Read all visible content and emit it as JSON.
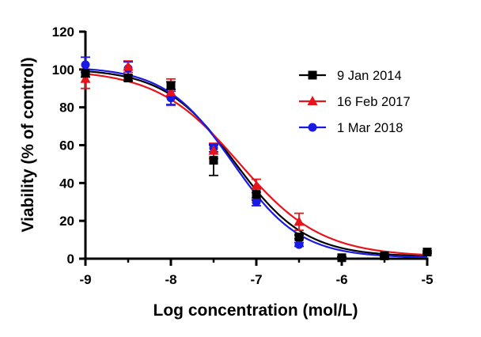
{
  "chart_data": {
    "type": "scatter",
    "xlabel": "Log concentration (mol/L)",
    "ylabel": "Viability (% of control)",
    "xlim": [
      -9,
      -5
    ],
    "ylim": [
      0,
      120
    ],
    "x_ticks": [
      "-9",
      "-8",
      "-7",
      "-6",
      "-5"
    ],
    "y_ticks": [
      "0",
      "20",
      "40",
      "60",
      "80",
      "100",
      "120"
    ],
    "legend_position": "right",
    "series": [
      {
        "name": "9 Jan 2014",
        "color": "#000000",
        "marker": "square",
        "points": [
          {
            "x": -9.0,
            "y": 98,
            "err": 2
          },
          {
            "x": -8.5,
            "y": 95.5,
            "err": 1.5
          },
          {
            "x": -8.0,
            "y": 91.5,
            "err": 2
          },
          {
            "x": -7.5,
            "y": 52,
            "err": 8
          },
          {
            "x": -7.0,
            "y": 34,
            "err": 3
          },
          {
            "x": -6.5,
            "y": 11.5,
            "err": 1
          },
          {
            "x": -6.0,
            "y": 0.5,
            "err": 0.5
          },
          {
            "x": -5.5,
            "y": 1.5,
            "err": 0.5
          },
          {
            "x": -5.0,
            "y": 3.5,
            "err": 0.5
          }
        ],
        "fit": {
          "top": 100.5,
          "bottom": 1,
          "logIC50": -7.25,
          "hill": -1.05
        }
      },
      {
        "name": "16 Feb 2017",
        "color": "#e8141b",
        "marker": "triangle",
        "points": [
          {
            "x": -9.0,
            "y": 95,
            "err": 5
          },
          {
            "x": -8.5,
            "y": 101.5,
            "err": 3
          },
          {
            "x": -8.0,
            "y": 88,
            "err": 7
          },
          {
            "x": -7.5,
            "y": 57,
            "err": 4
          },
          {
            "x": -7.0,
            "y": 38.5,
            "err": 3.5
          },
          {
            "x": -6.5,
            "y": 19.5,
            "err": 4.5
          }
        ],
        "fit": {
          "top": 100,
          "bottom": 1,
          "logIC50": -7.2,
          "hill": -0.9
        }
      },
      {
        "name": "1 Mar 2018",
        "color": "#1a1ae6",
        "marker": "circle",
        "points": [
          {
            "x": -9.0,
            "y": 102.5,
            "err": 4
          },
          {
            "x": -8.5,
            "y": 100.5,
            "err": 3.5
          },
          {
            "x": -8.0,
            "y": 85,
            "err": 3.5
          },
          {
            "x": -7.5,
            "y": 58.5,
            "err": 2
          },
          {
            "x": -7.0,
            "y": 30,
            "err": 2
          },
          {
            "x": -6.5,
            "y": 7.5,
            "err": 1
          }
        ],
        "fit": {
          "top": 101.5,
          "bottom": 0.5,
          "logIC50": -7.28,
          "hill": -1.1
        }
      }
    ]
  }
}
